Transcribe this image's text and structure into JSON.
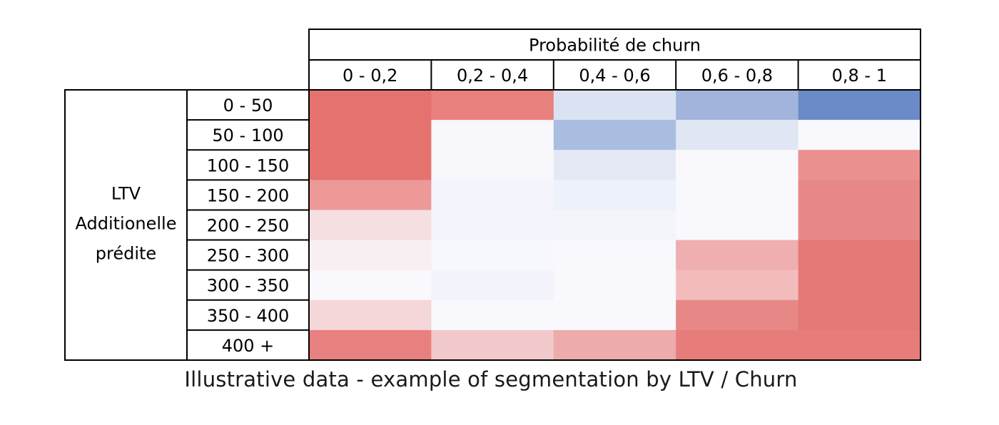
{
  "chart_data": {
    "type": "heatmap",
    "column_group_label": "Probabilité de churn",
    "row_group_label": [
      "LTV",
      "Additionelle",
      "prédite"
    ],
    "columns": [
      "0 - 0,2",
      "0,2 - 0,4",
      "0,4 - 0,6",
      "0,6 - 0,8",
      "0,8 - 1"
    ],
    "rows": [
      "0 - 50",
      "50 - 100",
      "100 - 150",
      "150 - 200",
      "200 - 250",
      "250 - 300",
      "300 - 350",
      "350 - 400",
      "400 +"
    ],
    "cell_colors": [
      [
        "#e5726f",
        "#e8807e",
        "#dbe2f1",
        "#a2b4dc",
        "#6a8bc8"
      ],
      [
        "#e5726f",
        "#f7f7fc",
        "#a9bde0",
        "#e0e6f4",
        "#f9f9fd"
      ],
      [
        "#e5726f",
        "#f7f7fc",
        "#e5e9f5",
        "#f9f9fd",
        "#ea908e"
      ],
      [
        "#ec9998",
        "#f4f5fc",
        "#edf1f9",
        "#f9f9fd",
        "#e78886"
      ],
      [
        "#f5dfe1",
        "#f4f5fc",
        "#f4f5fb",
        "#f9f9fd",
        "#e78886"
      ],
      [
        "#f8eff2",
        "#f7f8fd",
        "#f8f8fd",
        "#efaeaf",
        "#e57977"
      ],
      [
        "#f9f9fd",
        "#f3f4fb",
        "#f8f8fd",
        "#f2bcbd",
        "#e57977"
      ],
      [
        "#f5d6d9",
        "#f9f9fd",
        "#f9f9fd",
        "#e78886",
        "#e57977"
      ],
      [
        "#e7807e",
        "#f2c9cb",
        "#edabab",
        "#e67d7b",
        "#e67d7b"
      ]
    ]
  },
  "caption": "Illustrative data - example of segmentation by LTV / Churn"
}
